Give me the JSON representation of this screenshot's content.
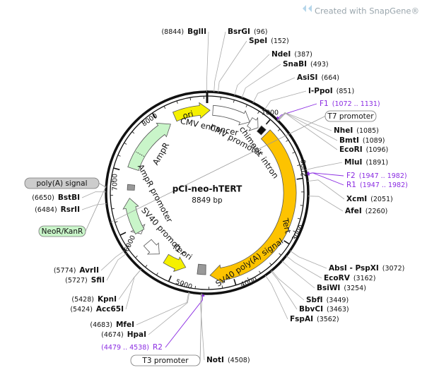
{
  "header": {
    "text": "Created with SnapGene®"
  },
  "plasmid": {
    "name": "pCI-neo-hTERT",
    "size": "8849 bp"
  },
  "ticks": [
    "1000",
    "2000",
    "3000",
    "4000",
    "5000",
    "6000",
    "7000",
    "8000"
  ],
  "features": [
    {
      "label": "ori"
    },
    {
      "label": "CMV enhancer"
    },
    {
      "label": "CMV promoter"
    },
    {
      "label": "chimeric intron"
    },
    {
      "label": "Tert"
    },
    {
      "label": "SV40 poly(A) signal"
    },
    {
      "label": "f1 ori"
    },
    {
      "label": "SV40 promoter"
    },
    {
      "label": "AmpR promoter"
    },
    {
      "label": "AmpR"
    }
  ],
  "external_features": [
    {
      "label": "T7 promoter"
    },
    {
      "label": "poly(A) signal"
    },
    {
      "label": "NeoR/KanR"
    },
    {
      "label": "T3 promoter"
    }
  ],
  "primers": [
    {
      "name": "F1",
      "range": "(1072 .. 1131)"
    },
    {
      "name": "F2",
      "range": "(1947 .. 1982)"
    },
    {
      "name": "R1",
      "range": "(1947 .. 1982)"
    },
    {
      "name": "R2",
      "range": "(4479 .. 4538)"
    }
  ],
  "enzymes": [
    {
      "name": "BglII",
      "site": "(8844)"
    },
    {
      "name": "BsrGI",
      "site": "(96)"
    },
    {
      "name": "SpeI",
      "site": "(152)"
    },
    {
      "name": "NdeI",
      "site": "(387)"
    },
    {
      "name": "SnaBI",
      "site": "(493)"
    },
    {
      "name": "AsiSI",
      "site": "(664)"
    },
    {
      "name": "I-PpoI",
      "site": "(851)"
    },
    {
      "name": "NheI",
      "site": "(1085)"
    },
    {
      "name": "BmtI",
      "site": "(1089)"
    },
    {
      "name": "EcoRI",
      "site": "(1096)"
    },
    {
      "name": "MluI",
      "site": "(1891)"
    },
    {
      "name": "XcmI",
      "site": "(2051)"
    },
    {
      "name": "AfeI",
      "site": "(2260)"
    },
    {
      "name": "AbsI - PspXI",
      "site": "(3072)"
    },
    {
      "name": "EcoRV",
      "site": "(3162)"
    },
    {
      "name": "BsiWI",
      "site": "(3254)"
    },
    {
      "name": "SbfI",
      "site": "(3449)"
    },
    {
      "name": "BbvCI",
      "site": "(3463)"
    },
    {
      "name": "FspAI",
      "site": "(3562)"
    },
    {
      "name": "NotI",
      "site": "(4508)"
    },
    {
      "name": "MfeI",
      "site": "(4683)"
    },
    {
      "name": "HpaI",
      "site": "(4674)"
    },
    {
      "name": "KpnI",
      "site": "(5428)"
    },
    {
      "name": "Acc65I",
      "site": "(5424)"
    },
    {
      "name": "AvrII",
      "site": "(5774)"
    },
    {
      "name": "SfiI",
      "site": "(5727)"
    },
    {
      "name": "BstBI",
      "site": "(6650)"
    },
    {
      "name": "RsrII",
      "site": "(6484)"
    }
  ]
}
